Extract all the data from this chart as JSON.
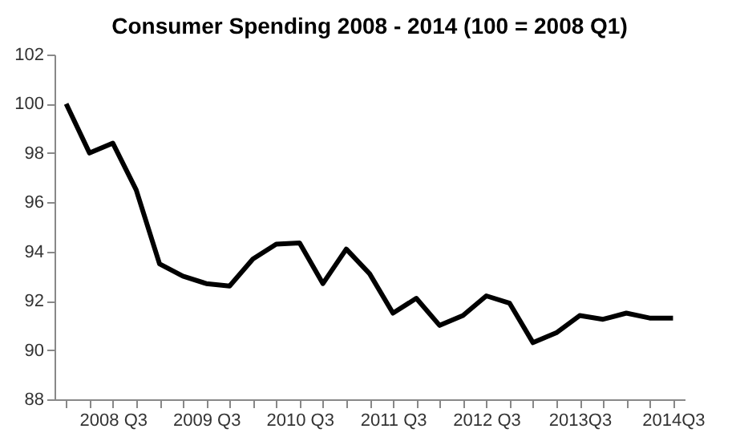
{
  "chart_data": {
    "type": "line",
    "title": "Consumer Spending 2008 - 2014 (100 = 2008 Q1)",
    "categories": [
      null,
      null,
      "2008 Q3",
      null,
      null,
      null,
      "2009 Q3",
      null,
      null,
      null,
      "2010 Q3",
      null,
      null,
      null,
      "2011 Q3",
      null,
      null,
      null,
      "2012 Q3",
      null,
      null,
      null,
      "2013Q3",
      null,
      null,
      null,
      "2014Q3"
    ],
    "series": [
      {
        "color": "#000000",
        "values": [
          100,
          98.0,
          98.4,
          96.5,
          93.5,
          93.0,
          92.7,
          92.6,
          93.7,
          94.3,
          94.35,
          92.7,
          94.1,
          93.1,
          91.5,
          92.1,
          91.0,
          91.4,
          92.2,
          91.9,
          90.3,
          90.7,
          91.4,
          91.25,
          91.5,
          91.3,
          91.3
        ]
      }
    ],
    "ylim": [
      88,
      102
    ],
    "yticks": [
      88,
      90,
      92,
      94,
      96,
      98,
      100,
      102
    ],
    "grid": false,
    "legend": false,
    "marker": "none",
    "line_style": "solid"
  }
}
